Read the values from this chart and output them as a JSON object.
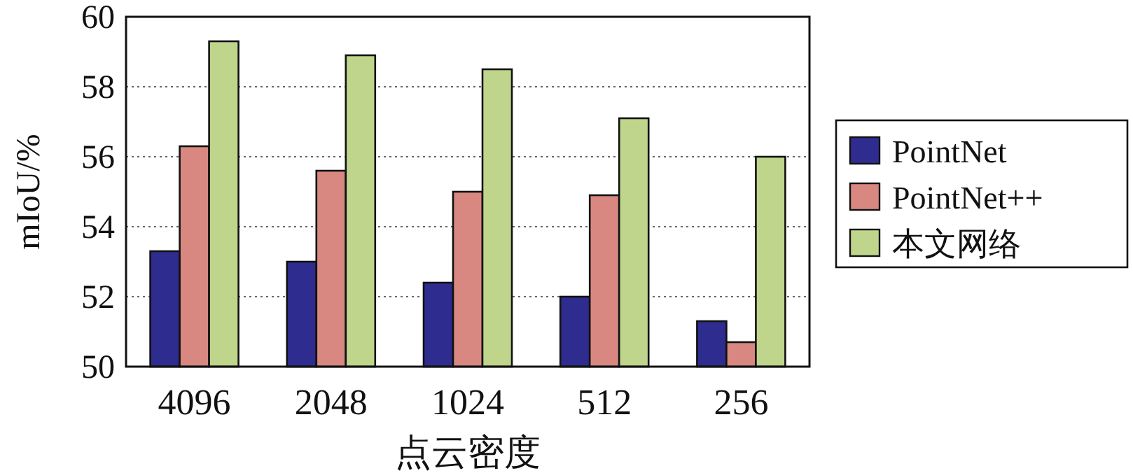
{
  "chart_data": {
    "type": "bar",
    "xlabel": "点云密度",
    "ylabel": "mIoU/%",
    "categories": [
      "4096",
      "2048",
      "1024",
      "512",
      "256"
    ],
    "series": [
      {
        "name": "PointNet",
        "color": "#2e2d8f",
        "values": [
          53.3,
          53.0,
          52.4,
          52.0,
          51.3
        ]
      },
      {
        "name": "PointNet++",
        "color": "#d88880",
        "values": [
          56.3,
          55.6,
          55.0,
          54.9,
          50.7
        ]
      },
      {
        "name": "本文网络",
        "color": "#bfd58c",
        "values": [
          59.3,
          58.9,
          58.5,
          57.1,
          56.0
        ]
      }
    ],
    "ylim": [
      50,
      60
    ],
    "yticks": [
      50,
      52,
      54,
      56,
      58,
      60
    ],
    "grid": "y",
    "legend": "right"
  }
}
